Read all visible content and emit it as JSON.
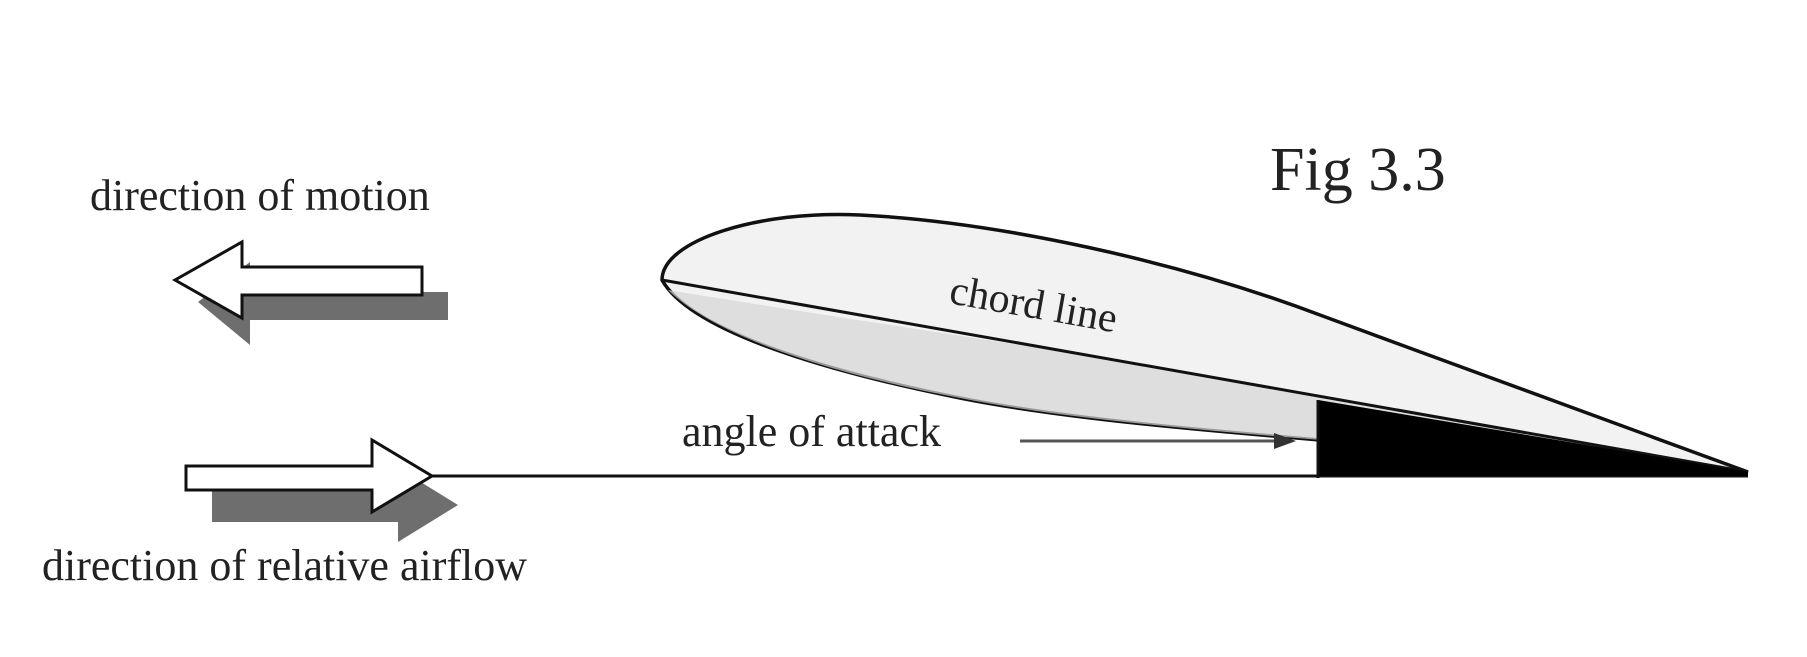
{
  "figure": {
    "label": "Fig 3.3"
  },
  "labels": {
    "direction_of_motion": "direction of motion",
    "chord_line": "chord line",
    "angle_of_attack": "angle of attack",
    "direction_of_relative_airflow": "direction of relative airflow"
  },
  "colors": {
    "outline": "#111111",
    "arrow_fill": "#ffffff",
    "arrow_shadow": "#6e6e6e",
    "airfoil_fill": "#f2f2f2",
    "airfoil_lower_fill": "#d6d6d6",
    "angle_wedge": "#000000",
    "text": "#222222"
  },
  "icons": {
    "motion_arrow": "left-arrow-icon",
    "airflow_arrow": "right-arrow-icon"
  }
}
